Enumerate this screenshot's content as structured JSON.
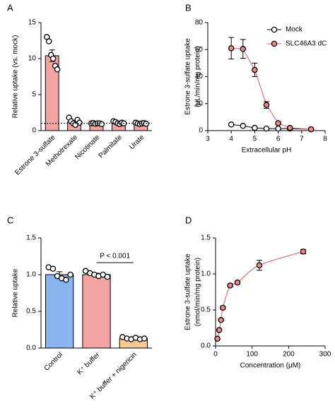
{
  "chart_data": [
    {
      "type": "bar",
      "panel": "A",
      "ylabel": [
        "Relative uptake (vs. mock)"
      ],
      "categories": [
        "Estrone 3-sulfate",
        "Methotrexate",
        "Nicotinate",
        "Palmitate",
        "Urate"
      ],
      "values": [
        10.4,
        1.2,
        1.0,
        1.1,
        1.0
      ],
      "errors": [
        0.8,
        0.2,
        0.05,
        0.15,
        0.05
      ],
      "points": [
        [
          13.0,
          12.4,
          10.5,
          10.0,
          9.0,
          8.5
        ],
        [
          1.8,
          1.3,
          1.0,
          0.8,
          1.5,
          1.1
        ],
        [
          1.0,
          1.05,
          0.95,
          1.0,
          1.0,
          0.9
        ],
        [
          1.3,
          1.2,
          1.0,
          0.9,
          1.1,
          1.0
        ],
        [
          1.1,
          1.0,
          0.9,
          1.0,
          1.05,
          0.95
        ]
      ],
      "color": "#f4a3a3",
      "reference_line": 1,
      "ylim": [
        0,
        15
      ],
      "yticks": [
        0,
        5,
        10,
        15
      ]
    },
    {
      "type": "line",
      "panel": "B",
      "ylabel": [
        "Estrone 3-sulfate uptake",
        "(μL/min/mg protein)"
      ],
      "xlabel": "Extracellular pH",
      "x": [
        4,
        4.5,
        5,
        5.5,
        6,
        6.5,
        7.4
      ],
      "series": [
        {
          "name": "Mock",
          "color": "#000000",
          "fill": "#ffffff",
          "values": [
            4.5,
            3.5,
            2,
            1.5,
            1.5,
            1.5,
            1
          ]
        },
        {
          "name": "SLC46A3 dC",
          "color": "#e05a5a",
          "fill": "#f08a8a",
          "values": [
            61,
            60.5,
            45,
            19,
            5.5,
            2,
            1
          ],
          "errors": [
            8,
            7,
            5,
            2.5,
            1,
            0.5,
            0.5
          ]
        }
      ],
      "legend": "top-right",
      "xlim": [
        3,
        8
      ],
      "xticks": [
        3,
        4,
        5,
        6,
        7,
        8
      ],
      "ylim": [
        0,
        80
      ],
      "yticks": [
        0,
        20,
        40,
        60,
        80
      ]
    },
    {
      "type": "bar",
      "panel": "C",
      "ylabel": [
        "Relative uptake"
      ],
      "categories": [
        "Control",
        "K⁺ buffer",
        "K⁺ buffer + nigericin"
      ],
      "values": [
        1.0,
        1.0,
        0.13
      ],
      "errors": [
        0.04,
        0.02,
        0.01
      ],
      "points": [
        [
          1.1,
          1.08,
          0.98,
          0.95,
          0.93,
          1.0
        ],
        [
          1.05,
          1.02,
          1.0,
          0.98,
          1.0,
          0.97
        ],
        [
          0.15,
          0.13,
          0.12,
          0.14,
          0.12,
          0.13
        ]
      ],
      "colors": [
        "#8ab4f0",
        "#f4a3a3",
        "#f8c890"
      ],
      "annotation": "P < 0.001",
      "ylim": [
        0,
        1.5
      ],
      "yticks": [
        {
          "value": 0,
          "label": "0.0"
        },
        0.5,
        {
          "value": 1,
          "label": "1.0"
        },
        1.5
      ]
    },
    {
      "type": "scatter",
      "panel": "D",
      "ylabel": [
        "Estrone 3-sulfate uptake",
        "(nmol/min/mg protein)"
      ],
      "xlabel": "Concentration (μM)",
      "x": [
        5,
        10,
        15,
        20,
        40,
        60,
        120,
        240
      ],
      "values": [
        0.1,
        0.22,
        0.36,
        0.53,
        0.84,
        0.88,
        1.12,
        1.31
      ],
      "errors": [
        0.01,
        0.01,
        0.01,
        0.02,
        0.02,
        0.02,
        0.07,
        0.03
      ],
      "color": "#e05a5a",
      "fill": "#f08a8a",
      "xlim": [
        0,
        300
      ],
      "xticks": [
        0,
        100,
        200,
        300
      ],
      "ylim": [
        0,
        1.5
      ],
      "yticks": [
        {
          "value": 0,
          "label": "0.0"
        },
        0.5,
        {
          "value": 1,
          "label": "1.0"
        },
        1.5
      ]
    }
  ]
}
